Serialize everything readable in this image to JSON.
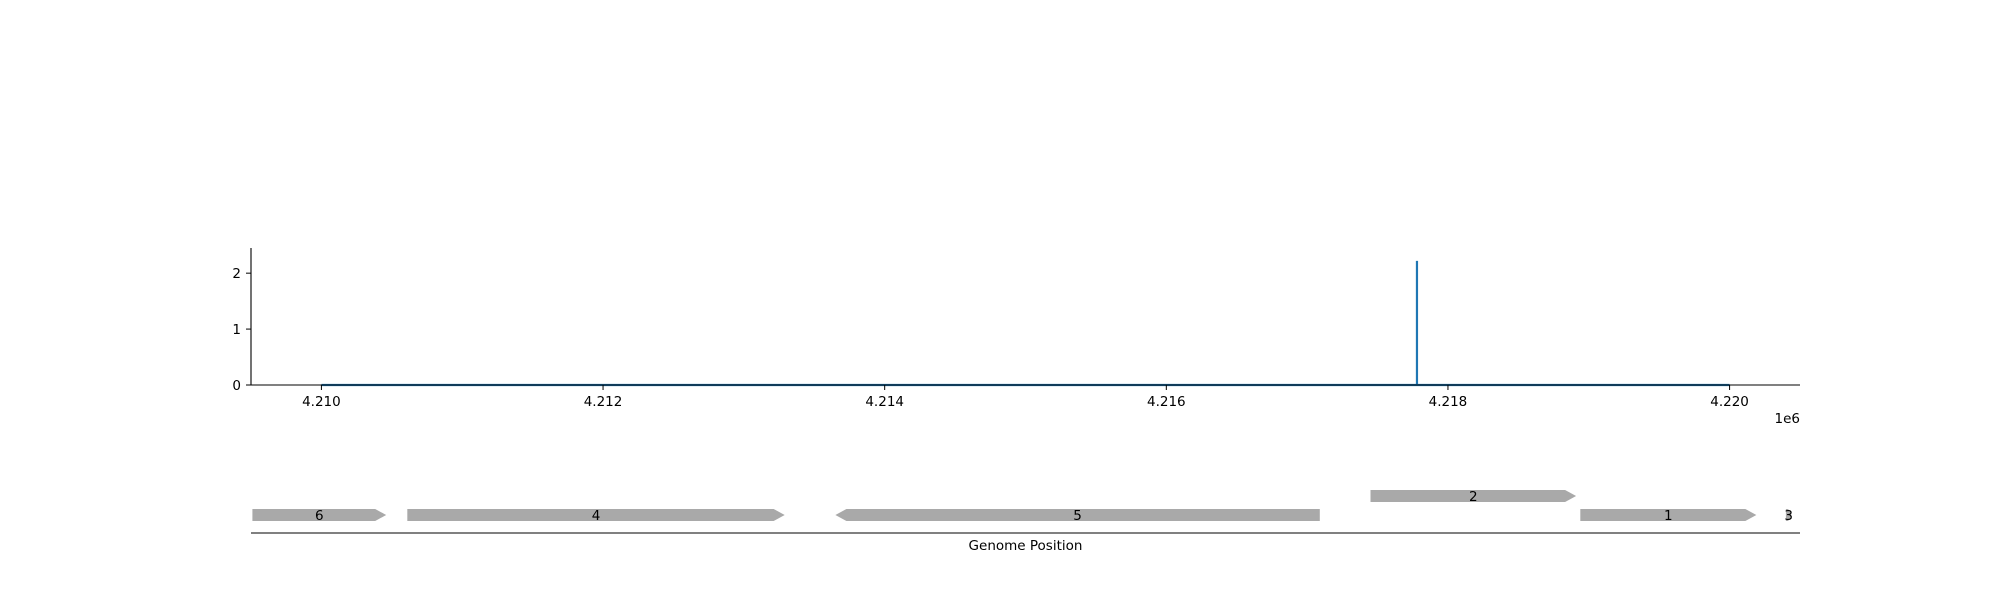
{
  "chart_data": [
    {
      "type": "line",
      "title": "",
      "xlabel": "",
      "ylabel": "",
      "x_offset_label": "1e6",
      "xlim": [
        4209500,
        4220500
      ],
      "ylim": [
        0,
        2.45
      ],
      "x_ticks": [
        4210000,
        4212000,
        4214000,
        4216000,
        4218000,
        4220000
      ],
      "x_tick_labels": [
        "4.210",
        "4.212",
        "4.214",
        "4.216",
        "4.218",
        "4.220"
      ],
      "y_ticks": [
        0,
        1,
        2
      ],
      "y_tick_labels": [
        "0",
        "1",
        "2"
      ],
      "series": [
        {
          "color": "#1f77b4",
          "x": [
            4210000,
            4217780,
            4217780,
            4217780,
            4220000
          ],
          "y": [
            0,
            0,
            2.22,
            0,
            0
          ]
        }
      ]
    },
    {
      "type": "gene-map",
      "xlabel": "Genome Position",
      "xlim": [
        4209500,
        4220500
      ],
      "feature_color": "#a9a9a9",
      "features": [
        {
          "label": "6",
          "start": 4209510,
          "end": 4210460,
          "strand": "+",
          "row": 0
        },
        {
          "label": "4",
          "start": 4210610,
          "end": 4213290,
          "strand": "+",
          "row": 0
        },
        {
          "label": "5",
          "start": 4213650,
          "end": 4217090,
          "strand": "-",
          "row": 0
        },
        {
          "label": "2",
          "start": 4217450,
          "end": 4218910,
          "strand": "+",
          "row": 1
        },
        {
          "label": "1",
          "start": 4218940,
          "end": 4220190,
          "strand": "+",
          "row": 0
        },
        {
          "label": "3",
          "start": 4220400,
          "end": 4220440,
          "strand": "+",
          "row": 0
        }
      ]
    }
  ]
}
